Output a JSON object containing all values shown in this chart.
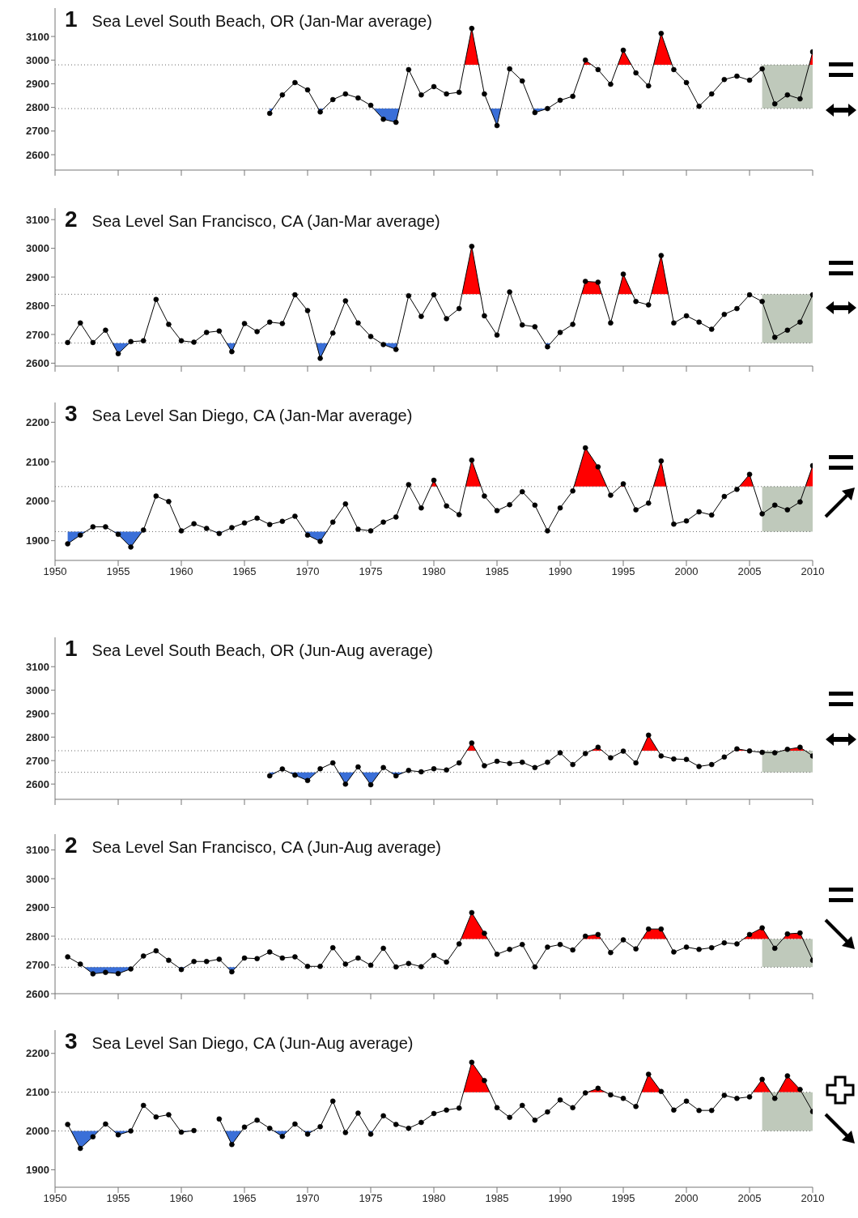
{
  "chart_data": [
    {
      "type": "line",
      "title": "1 Sea Level South Beach, OR (Jan-Mar average)",
      "x": [
        1967,
        1968,
        1969,
        1970,
        1971,
        1972,
        1973,
        1974,
        1975,
        1976,
        1977,
        1978,
        1979,
        1980,
        1981,
        1982,
        1983,
        1984,
        1985,
        1986,
        1987,
        1988,
        1989,
        1990,
        1991,
        1992,
        1993,
        1994,
        1995,
        1996,
        1997,
        1998,
        1999,
        2000,
        2001,
        2002,
        2003,
        2004,
        2005,
        2006,
        2007,
        2008,
        2009,
        2010
      ],
      "series": [
        {
          "color": "#000000",
          "values": [
            2775,
            2853,
            2905,
            2874,
            2781,
            2833,
            2857,
            2840,
            2809,
            2750,
            2737,
            2960,
            2853,
            2888,
            2857,
            2864,
            3134,
            2857,
            2723,
            2963,
            2912,
            2778,
            2795,
            2830,
            2847,
            3000,
            2960,
            2898,
            3042,
            2946,
            2891,
            3113,
            2960,
            2905,
            2805,
            2857,
            2918,
            2932,
            2915,
            2963,
            2815,
            2853,
            2836,
            3035
          ]
        }
      ],
      "xlim": [
        1950,
        2010
      ],
      "xticks": [
        1950,
        1955,
        1960,
        1965,
        1970,
        1975,
        1980,
        1985,
        1990,
        1995,
        2000,
        2005,
        2010
      ],
      "ylim": [
        2535,
        3220
      ],
      "yticks": [
        2600,
        2700,
        2800,
        2900,
        3000,
        3100
      ],
      "tick_labels": "y",
      "marker": "circle",
      "ref_lines": [
        {
          "axis": "y",
          "value": 2980,
          "color": "#666666",
          "line_style": "dotted"
        },
        {
          "axis": "y",
          "value": 2795,
          "color": "#666666",
          "line_style": "dotted"
        }
      ],
      "bands": [
        {
          "axis": "x",
          "from": 2006,
          "to": 2010,
          "color": "#bfc9bb"
        }
      ]
    },
    {
      "type": "line",
      "title": "2 Sea Level San Francisco, CA (Jan-Mar average)",
      "x": [
        1951,
        1952,
        1953,
        1954,
        1955,
        1956,
        1957,
        1958,
        1959,
        1960,
        1961,
        1962,
        1963,
        1964,
        1965,
        1966,
        1967,
        1968,
        1969,
        1970,
        1971,
        1972,
        1973,
        1974,
        1975,
        1976,
        1977,
        1978,
        1979,
        1980,
        1981,
        1982,
        1983,
        1984,
        1985,
        1986,
        1987,
        1988,
        1989,
        1990,
        1991,
        1992,
        1993,
        1994,
        1995,
        1996,
        1997,
        1998,
        1999,
        2000,
        2001,
        2002,
        2003,
        2004,
        2005,
        2006,
        2007,
        2008,
        2009,
        2010
      ],
      "series": [
        {
          "color": "#000000",
          "values": [
            2672,
            2740,
            2672,
            2715,
            2633,
            2675,
            2678,
            2822,
            2735,
            2678,
            2673,
            2707,
            2712,
            2640,
            2738,
            2710,
            2743,
            2738,
            2838,
            2783,
            2617,
            2705,
            2817,
            2740,
            2693,
            2665,
            2648,
            2835,
            2763,
            2838,
            2755,
            2790,
            3007,
            2765,
            2698,
            2848,
            2733,
            2727,
            2657,
            2707,
            2735,
            2885,
            2882,
            2740,
            2910,
            2815,
            2803,
            2975,
            2740,
            2765,
            2743,
            2718,
            2770,
            2790,
            2838,
            2815,
            2690,
            2715,
            2743,
            2838
          ]
        }
      ],
      "xlim": [
        1950,
        2010
      ],
      "xticks": [
        1950,
        1955,
        1960,
        1965,
        1970,
        1975,
        1980,
        1985,
        1990,
        1995,
        2000,
        2005,
        2010
      ],
      "ylim": [
        2590,
        3140
      ],
      "yticks": [
        2600,
        2700,
        2800,
        2900,
        3000,
        3100
      ],
      "tick_labels": "y",
      "marker": "circle",
      "ref_lines": [
        {
          "axis": "y",
          "value": 2840,
          "color": "#666666",
          "line_style": "dotted"
        },
        {
          "axis": "y",
          "value": 2670,
          "color": "#666666",
          "line_style": "dotted"
        }
      ],
      "bands": [
        {
          "axis": "x",
          "from": 2006,
          "to": 2010,
          "color": "#bfc9bb"
        }
      ]
    },
    {
      "type": "line",
      "title": "3 Sea Level San Diego, CA (Jan-Mar average)",
      "x": [
        1951,
        1952,
        1953,
        1954,
        1955,
        1956,
        1957,
        1958,
        1959,
        1960,
        1961,
        1962,
        1963,
        1964,
        1965,
        1966,
        1967,
        1968,
        1969,
        1970,
        1971,
        1972,
        1973,
        1974,
        1975,
        1976,
        1977,
        1978,
        1979,
        1980,
        1981,
        1982,
        1983,
        1984,
        1985,
        1986,
        1987,
        1988,
        1989,
        1990,
        1991,
        1992,
        1993,
        1994,
        1995,
        1996,
        1997,
        1998,
        1999,
        2000,
        2001,
        2002,
        2003,
        2004,
        2005,
        2006,
        2007,
        2008,
        2009,
        2010
      ],
      "series": [
        {
          "color": "#000000",
          "values": [
            1892,
            1914,
            1935,
            1935,
            1916,
            1884,
            1927,
            2013,
            1999,
            1925,
            1943,
            1931,
            1918,
            1933,
            1945,
            1957,
            1941,
            1949,
            1962,
            1914,
            1898,
            1947,
            1993,
            1929,
            1925,
            1947,
            1960,
            2042,
            1983,
            2053,
            1988,
            1966,
            2104,
            2013,
            1976,
            1991,
            2024,
            1990,
            1925,
            1983,
            2026,
            2135,
            2087,
            2015,
            2044,
            1978,
            1995,
            2102,
            1942,
            1950,
            1973,
            1965,
            2012,
            2030,
            2068,
            1968,
            1990,
            1978,
            1998,
            2090
          ]
        }
      ],
      "xlim": [
        1950,
        2010
      ],
      "xticks": [
        1950,
        1955,
        1960,
        1965,
        1970,
        1975,
        1980,
        1985,
        1990,
        1995,
        2000,
        2005,
        2010
      ],
      "ylim": [
        1850,
        2250
      ],
      "yticks": [
        1900,
        2000,
        2100,
        2200
      ],
      "marker": "circle",
      "ref_lines": [
        {
          "axis": "y",
          "value": 2037,
          "color": "#666666",
          "line_style": "dotted"
        },
        {
          "axis": "y",
          "value": 1923,
          "color": "#666666",
          "line_style": "dotted"
        }
      ],
      "bands": [
        {
          "axis": "x",
          "from": 2006,
          "to": 2010,
          "color": "#bfc9bb"
        }
      ]
    },
    {
      "type": "line",
      "title": "1 Sea Level South Beach, OR (Jun-Aug average)",
      "x": [
        1967,
        1968,
        1969,
        1970,
        1971,
        1972,
        1973,
        1974,
        1975,
        1976,
        1977,
        1978,
        1979,
        1980,
        1981,
        1982,
        1983,
        1984,
        1985,
        1986,
        1987,
        1988,
        1989,
        1990,
        1991,
        1992,
        1993,
        1994,
        1995,
        1996,
        1997,
        1998,
        1999,
        2000,
        2001,
        2002,
        2003,
        2004,
        2005,
        2006,
        2007,
        2008,
        2009,
        2010
      ],
      "series": [
        {
          "color": "#000000",
          "values": [
            2635,
            2664,
            2638,
            2615,
            2665,
            2690,
            2600,
            2673,
            2597,
            2670,
            2635,
            2658,
            2652,
            2665,
            2660,
            2690,
            2775,
            2678,
            2697,
            2688,
            2693,
            2670,
            2693,
            2733,
            2683,
            2730,
            2757,
            2712,
            2740,
            2690,
            2808,
            2720,
            2707,
            2705,
            2675,
            2683,
            2715,
            2750,
            2741,
            2735,
            2733,
            2748,
            2757,
            2720
          ]
        }
      ],
      "xlim": [
        1950,
        2010
      ],
      "xticks": [
        1950,
        1955,
        1960,
        1965,
        1970,
        1975,
        1980,
        1985,
        1990,
        1995,
        2000,
        2005,
        2010
      ],
      "ylim": [
        2535,
        3225
      ],
      "yticks": [
        2600,
        2700,
        2800,
        2900,
        3000,
        3100
      ],
      "tick_labels": "y",
      "marker": "circle",
      "ref_lines": [
        {
          "axis": "y",
          "value": 2742,
          "color": "#666666",
          "line_style": "dotted"
        },
        {
          "axis": "y",
          "value": 2650,
          "color": "#666666",
          "line_style": "dotted"
        }
      ],
      "bands": [
        {
          "axis": "x",
          "from": 2006,
          "to": 2010,
          "color": "#bfc9bb"
        }
      ]
    },
    {
      "type": "line",
      "title": "2 Sea Level San Francisco, CA (Jun-Aug average)",
      "x": [
        1951,
        1952,
        1953,
        1954,
        1955,
        1956,
        1957,
        1958,
        1959,
        1960,
        1961,
        1962,
        1963,
        1964,
        1965,
        1966,
        1967,
        1968,
        1969,
        1970,
        1971,
        1972,
        1973,
        1974,
        1975,
        1976,
        1977,
        1978,
        1979,
        1980,
        1981,
        1982,
        1983,
        1984,
        1985,
        1986,
        1987,
        1988,
        1989,
        1990,
        1991,
        1992,
        1993,
        1994,
        1995,
        1996,
        1997,
        1998,
        1999,
        2000,
        2001,
        2002,
        2003,
        2004,
        2005,
        2006,
        2007,
        2008,
        2009,
        2010
      ],
      "series": [
        {
          "color": "#000000",
          "values": [
            2728,
            2703,
            2669,
            2674,
            2670,
            2686,
            2731,
            2749,
            2716,
            2684,
            2712,
            2712,
            2720,
            2676,
            2724,
            2722,
            2745,
            2724,
            2728,
            2695,
            2695,
            2760,
            2703,
            2724,
            2699,
            2758,
            2693,
            2705,
            2694,
            2733,
            2710,
            2773,
            2882,
            2810,
            2737,
            2754,
            2771,
            2693,
            2762,
            2771,
            2752,
            2800,
            2806,
            2743,
            2787,
            2756,
            2825,
            2825,
            2745,
            2762,
            2754,
            2760,
            2777,
            2773,
            2806,
            2829,
            2758,
            2808,
            2811,
            2716
          ]
        }
      ],
      "xlim": [
        1950,
        2010
      ],
      "xticks": [
        1950,
        1955,
        1960,
        1965,
        1970,
        1975,
        1980,
        1985,
        1990,
        1995,
        2000,
        2005,
        2010
      ],
      "ylim": [
        2600,
        3155
      ],
      "yticks": [
        2600,
        2700,
        2800,
        2900,
        3000,
        3100
      ],
      "tick_labels": "y",
      "marker": "circle",
      "ref_lines": [
        {
          "axis": "y",
          "value": 2790,
          "color": "#666666",
          "line_style": "dotted"
        },
        {
          "axis": "y",
          "value": 2692,
          "color": "#666666",
          "line_style": "dotted"
        }
      ],
      "bands": [
        {
          "axis": "x",
          "from": 2006,
          "to": 2010,
          "color": "#bfc9bb"
        }
      ]
    },
    {
      "type": "line",
      "title": "3 Sea Level San Diego, CA (Jun-Aug average)",
      "x": [
        1951,
        1952,
        1953,
        1954,
        1955,
        1956,
        1957,
        1958,
        1959,
        1960,
        1961,
        1962,
        1963,
        1964,
        1965,
        1966,
        1967,
        1968,
        1969,
        1970,
        1971,
        1972,
        1973,
        1974,
        1975,
        1976,
        1977,
        1978,
        1979,
        1980,
        1981,
        1982,
        1983,
        1984,
        1985,
        1986,
        1987,
        1988,
        1989,
        1990,
        1991,
        1992,
        1993,
        1994,
        1995,
        1996,
        1997,
        1998,
        1999,
        2000,
        2001,
        2002,
        2003,
        2004,
        2005,
        2006,
        2007,
        2008,
        2009,
        2010
      ],
      "series": [
        {
          "color": "#000000",
          "values": [
            2017,
            1955,
            1985,
            2018,
            1990,
            2000,
            2066,
            2036,
            2042,
            1997,
            2001,
            null,
            2031,
            1965,
            2010,
            2028,
            2007,
            1986,
            2018,
            1992,
            2011,
            2077,
            1996,
            2046,
            1992,
            2039,
            2017,
            2007,
            2022,
            2045,
            2054,
            2059,
            2177,
            2130,
            2060,
            2035,
            2066,
            2028,
            2049,
            2080,
            2060,
            2098,
            2110,
            2093,
            2084,
            2063,
            2146,
            2102,
            2054,
            2077,
            2053,
            2053,
            2092,
            2084,
            2088,
            2133,
            2084,
            2142,
            2107,
            2050
          ]
        }
      ],
      "xlim": [
        1950,
        2010
      ],
      "xticks": [
        1950,
        1955,
        1960,
        1965,
        1970,
        1975,
        1980,
        1985,
        1990,
        1995,
        2000,
        2005,
        2010
      ],
      "ylim": [
        1855,
        2260
      ],
      "yticks": [
        1900,
        2000,
        2100,
        2200
      ],
      "marker": "circle",
      "ref_lines": [
        {
          "axis": "y",
          "value": 2100,
          "color": "#666666",
          "line_style": "dotted"
        },
        {
          "axis": "y",
          "value": 2000,
          "color": "#666666",
          "line_style": "dotted"
        }
      ],
      "bands": [
        {
          "axis": "x",
          "from": 2006,
          "to": 2010,
          "color": "#bfc9bb"
        }
      ]
    }
  ]
}
